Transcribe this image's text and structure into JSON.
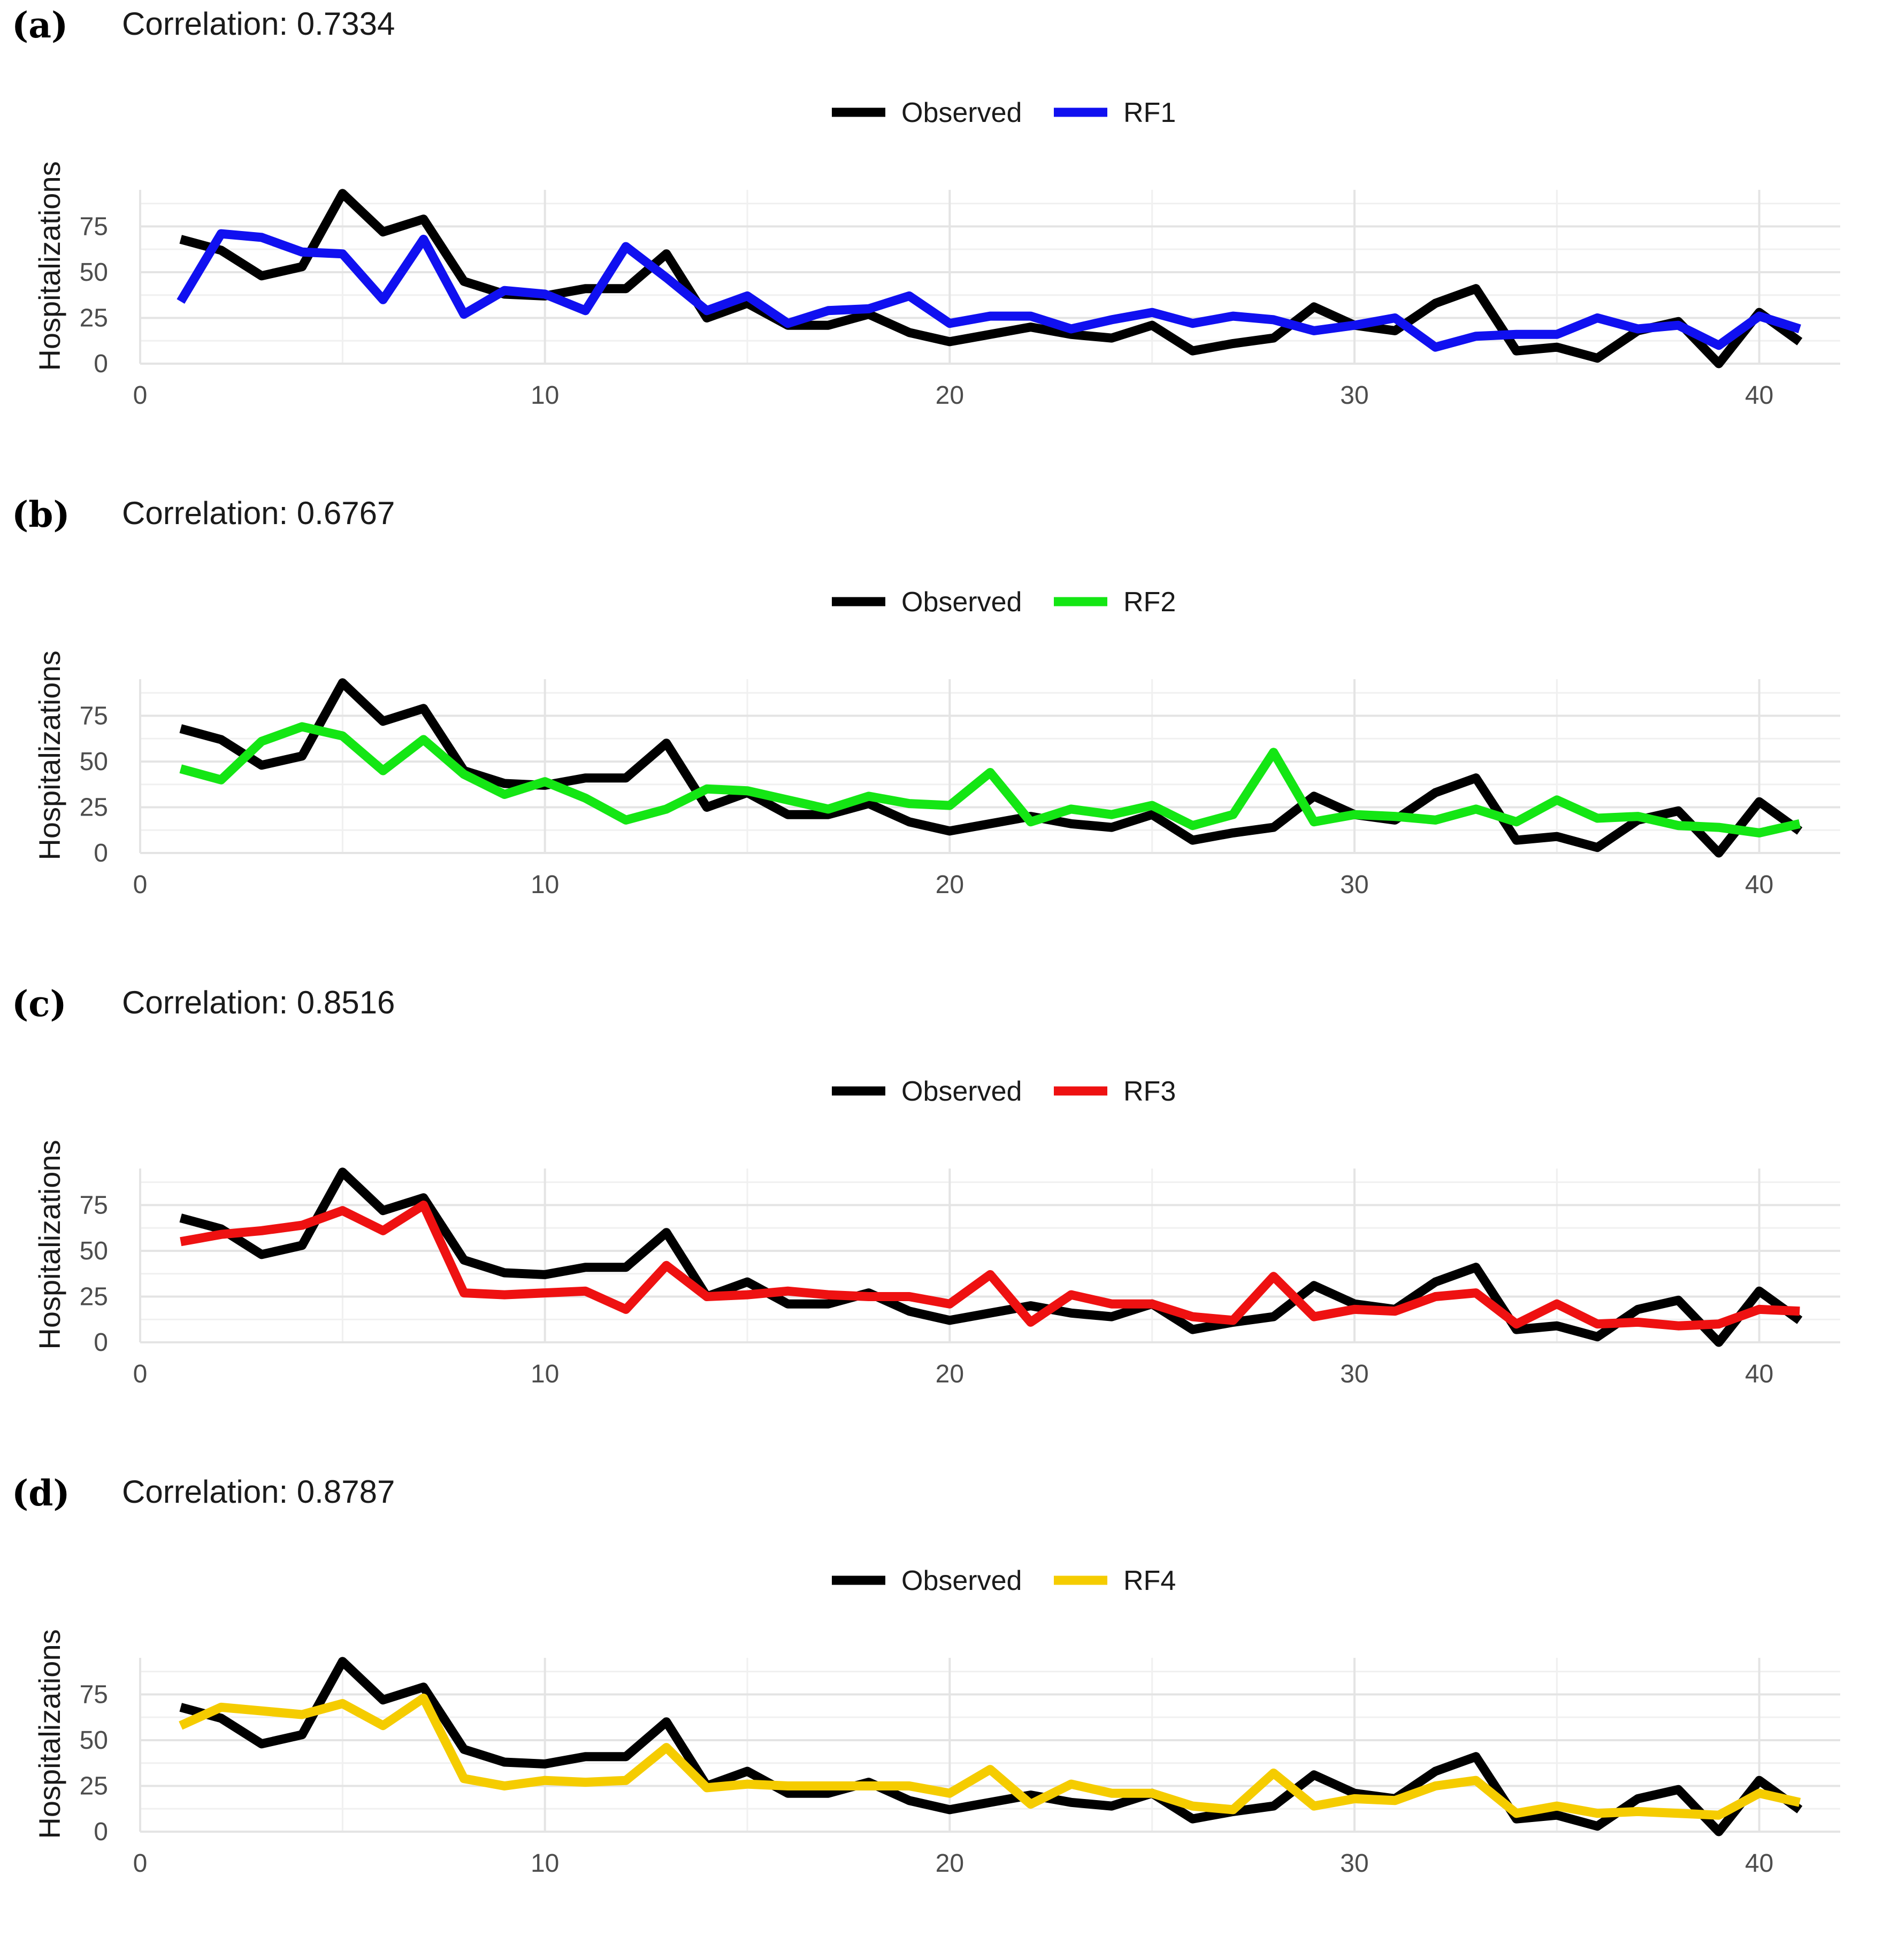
{
  "chart_data": [
    {
      "type": "line",
      "panel_label": "(a)",
      "subtitle": "Correlation: 0.7334",
      "xlabel": "",
      "ylabel": "Hospitalizations",
      "xlim": [
        0,
        42
      ],
      "ylim": [
        0,
        95
      ],
      "x_ticks": [
        "0",
        "10",
        "20",
        "30",
        "40"
      ],
      "y_ticks": [
        "0",
        "25",
        "50",
        "75"
      ],
      "legend_position": "top-center",
      "x": [
        1,
        2,
        3,
        4,
        5,
        6,
        7,
        8,
        9,
        10,
        11,
        12,
        13,
        14,
        15,
        16,
        17,
        18,
        19,
        20,
        21,
        22,
        23,
        24,
        25,
        26,
        27,
        28,
        29,
        30,
        31,
        32,
        33,
        34,
        35,
        36,
        37,
        38,
        39,
        40,
        41
      ],
      "series": [
        {
          "name": "Observed",
          "color": "#000000",
          "values": [
            68,
            62,
            48,
            53,
            93,
            72,
            79,
            45,
            38,
            37,
            41,
            41,
            60,
            25,
            33,
            21,
            21,
            27,
            17,
            12,
            16,
            20,
            16,
            14,
            21,
            7,
            11,
            14,
            31,
            21,
            18,
            33,
            41,
            7,
            9,
            3,
            18,
            23,
            0,
            28,
            12
          ]
        },
        {
          "name": "RF1",
          "color": "#1010f0",
          "values": [
            34,
            71,
            69,
            61,
            60,
            35,
            68,
            27,
            40,
            38,
            29,
            64,
            47,
            29,
            37,
            22,
            29,
            30,
            37,
            22,
            26,
            26,
            19,
            24,
            28,
            22,
            26,
            24,
            18,
            21,
            25,
            9,
            15,
            16,
            16,
            25,
            19,
            21,
            10,
            26,
            19
          ]
        }
      ]
    },
    {
      "type": "line",
      "panel_label": "(b)",
      "subtitle": "Correlation: 0.6767",
      "xlabel": "",
      "ylabel": "Hospitalizations",
      "xlim": [
        0,
        42
      ],
      "ylim": [
        0,
        95
      ],
      "x_ticks": [
        "0",
        "10",
        "20",
        "30",
        "40"
      ],
      "y_ticks": [
        "0",
        "25",
        "50",
        "75"
      ],
      "legend_position": "top-center",
      "x": [
        1,
        2,
        3,
        4,
        5,
        6,
        7,
        8,
        9,
        10,
        11,
        12,
        13,
        14,
        15,
        16,
        17,
        18,
        19,
        20,
        21,
        22,
        23,
        24,
        25,
        26,
        27,
        28,
        29,
        30,
        31,
        32,
        33,
        34,
        35,
        36,
        37,
        38,
        39,
        40,
        41
      ],
      "series": [
        {
          "name": "Observed",
          "color": "#000000",
          "values": [
            68,
            62,
            48,
            53,
            93,
            72,
            79,
            45,
            38,
            37,
            41,
            41,
            60,
            25,
            33,
            21,
            21,
            27,
            17,
            12,
            16,
            20,
            16,
            14,
            21,
            7,
            11,
            14,
            31,
            21,
            18,
            33,
            41,
            7,
            9,
            3,
            18,
            23,
            0,
            28,
            12
          ]
        },
        {
          "name": "RF2",
          "color": "#14e614",
          "values": [
            46,
            40,
            61,
            69,
            64,
            45,
            62,
            43,
            32,
            39,
            30,
            18,
            24,
            35,
            34,
            29,
            24,
            31,
            27,
            26,
            44,
            17,
            24,
            21,
            26,
            15,
            21,
            55,
            17,
            21,
            20,
            18,
            24,
            17,
            29,
            19,
            20,
            15,
            14,
            11,
            16
          ]
        }
      ]
    },
    {
      "type": "line",
      "panel_label": "(c)",
      "subtitle": "Correlation: 0.8516",
      "xlabel": "",
      "ylabel": "Hospitalizations",
      "xlim": [
        0,
        42
      ],
      "ylim": [
        0,
        95
      ],
      "x_ticks": [
        "0",
        "10",
        "20",
        "30",
        "40"
      ],
      "y_ticks": [
        "0",
        "25",
        "50",
        "75"
      ],
      "legend_position": "top-center",
      "x": [
        1,
        2,
        3,
        4,
        5,
        6,
        7,
        8,
        9,
        10,
        11,
        12,
        13,
        14,
        15,
        16,
        17,
        18,
        19,
        20,
        21,
        22,
        23,
        24,
        25,
        26,
        27,
        28,
        29,
        30,
        31,
        32,
        33,
        34,
        35,
        36,
        37,
        38,
        39,
        40,
        41
      ],
      "series": [
        {
          "name": "Observed",
          "color": "#000000",
          "values": [
            68,
            62,
            48,
            53,
            93,
            72,
            79,
            45,
            38,
            37,
            41,
            41,
            60,
            25,
            33,
            21,
            21,
            27,
            17,
            12,
            16,
            20,
            16,
            14,
            21,
            7,
            11,
            14,
            31,
            21,
            18,
            33,
            41,
            7,
            9,
            3,
            18,
            23,
            0,
            28,
            12
          ]
        },
        {
          "name": "RF3",
          "color": "#ee1111",
          "values": [
            55,
            59,
            61,
            64,
            72,
            61,
            75,
            27,
            26,
            27,
            28,
            18,
            42,
            25,
            26,
            28,
            26,
            25,
            25,
            21,
            37,
            11,
            26,
            21,
            21,
            14,
            12,
            36,
            14,
            18,
            17,
            25,
            27,
            10,
            21,
            10,
            11,
            9,
            10,
            18,
            17
          ]
        }
      ]
    },
    {
      "type": "line",
      "panel_label": "(d)",
      "subtitle": "Correlation: 0.8787",
      "xlabel": "",
      "ylabel": "Hospitalizations",
      "xlim": [
        0,
        42
      ],
      "ylim": [
        0,
        95
      ],
      "x_ticks": [
        "0",
        "10",
        "20",
        "30",
        "40"
      ],
      "y_ticks": [
        "0",
        "25",
        "50",
        "75"
      ],
      "legend_position": "top-center",
      "x": [
        1,
        2,
        3,
        4,
        5,
        6,
        7,
        8,
        9,
        10,
        11,
        12,
        13,
        14,
        15,
        16,
        17,
        18,
        19,
        20,
        21,
        22,
        23,
        24,
        25,
        26,
        27,
        28,
        29,
        30,
        31,
        32,
        33,
        34,
        35,
        36,
        37,
        38,
        39,
        40,
        41
      ],
      "series": [
        {
          "name": "Observed",
          "color": "#000000",
          "values": [
            68,
            62,
            48,
            53,
            93,
            72,
            79,
            45,
            38,
            37,
            41,
            41,
            60,
            25,
            33,
            21,
            21,
            27,
            17,
            12,
            16,
            20,
            16,
            14,
            21,
            7,
            11,
            14,
            31,
            21,
            18,
            33,
            41,
            7,
            9,
            3,
            18,
            23,
            0,
            28,
            12
          ]
        },
        {
          "name": "RF4",
          "color": "#f5cc00",
          "values": [
            58,
            68,
            66,
            64,
            70,
            58,
            73,
            29,
            25,
            28,
            27,
            28,
            46,
            24,
            26,
            25,
            25,
            25,
            25,
            21,
            34,
            15,
            26,
            21,
            21,
            14,
            12,
            32,
            14,
            18,
            17,
            25,
            28,
            10,
            14,
            10,
            11,
            10,
            9,
            21,
            16
          ]
        }
      ]
    }
  ]
}
